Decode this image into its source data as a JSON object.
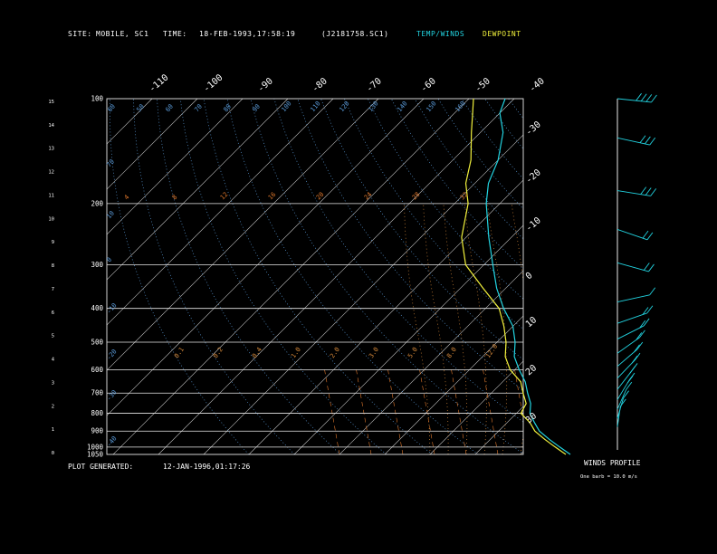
{
  "header": {
    "site_label": "SITE:",
    "site_value": "MOBILE, SC1",
    "time_label": "TIME:",
    "time_value": "18-FEB-1993,17:58:19",
    "file_id": "(J2181758.SC1)",
    "legend_temp": "TEMP/WINDS",
    "legend_dew": "DEWPOINT"
  },
  "footer": {
    "generated_label": "PLOT GENERATED:",
    "generated_value": "12-JAN-1996,01:17:26",
    "winds_title": "WINDS PROFILE",
    "winds_note": "One barb = 10.0 m/s"
  },
  "colors": {
    "temp": "#22d3e0",
    "dew": "#f0f03c",
    "isotherm": "#c8c8c8",
    "mixing": "#e0782c",
    "dry_adiabat": "#5a9ad8",
    "moist_adiabat": "#d88a3a"
  },
  "chart_data": {
    "type": "line",
    "pressure_ticks": [
      "100",
      "200",
      "300",
      "400",
      "500",
      "600",
      "700",
      "800",
      "900",
      "1000",
      "1050"
    ],
    "height_ticks": [
      "15",
      "14",
      "13",
      "12",
      "11",
      "10",
      "9",
      "8",
      "7",
      "6",
      "5",
      "4",
      "3",
      "2",
      "1",
      "0"
    ],
    "top_temp_ticks": [
      "-110",
      "-100",
      "-90",
      "-80",
      "-70",
      "-60",
      "-50",
      "-40"
    ],
    "right_temp_ticks": [
      "-30",
      "-20",
      "-10",
      "0",
      "10",
      "20",
      "30"
    ],
    "mixing_labels": [
      "4",
      "8",
      "12",
      "16",
      "20",
      "24",
      "28",
      "32"
    ],
    "dry_labels_top": [
      "60",
      "50",
      "60",
      "70",
      "80",
      "90",
      "100",
      "110",
      "120",
      "130",
      "140",
      "150",
      "160"
    ],
    "moist_labels": [
      "0.1",
      "0.2",
      "0.4",
      "1.0",
      "2.0",
      "3.0",
      "5.0",
      "8.0",
      "12.0"
    ],
    "left_dry_labels": [
      "70",
      "10",
      "0",
      "-10",
      "-20",
      "-30",
      "-40"
    ],
    "ylim_hpa": [
      1050,
      100
    ],
    "series": [
      {
        "name": "TEMP/WINDS",
        "pressure": [
          1050,
          1000,
          950,
          900,
          850,
          800,
          750,
          700,
          650,
          600,
          550,
          500,
          450,
          400,
          350,
          300,
          250,
          200,
          175,
          150,
          125,
          110,
          100
        ],
        "temp": [
          21,
          17,
          13,
          9,
          6,
          3,
          1,
          -2,
          -5,
          -9,
          -13,
          -16,
          -20,
          -26,
          -32,
          -38,
          -45,
          -53,
          -57,
          -60,
          -65,
          -70,
          -72
        ]
      },
      {
        "name": "DEWPOINT",
        "pressure": [
          1050,
          1000,
          950,
          900,
          850,
          800,
          750,
          700,
          650,
          600,
          550,
          500,
          450,
          400,
          350,
          300,
          250,
          200,
          175,
          150,
          125,
          110,
          100
        ],
        "temp": [
          20,
          16,
          12,
          8,
          5,
          1,
          0,
          -3,
          -6,
          -11,
          -15,
          -18,
          -22,
          -27,
          -35,
          -44,
          -51,
          -57,
          -62,
          -66,
          -72,
          -76,
          -79
        ]
      }
    ],
    "wind_barbs": [
      {
        "p": 100,
        "dir": 280,
        "spd": 35
      },
      {
        "p": 130,
        "dir": 290,
        "spd": 30
      },
      {
        "p": 185,
        "dir": 285,
        "spd": 25
      },
      {
        "p": 240,
        "dir": 300,
        "spd": 22
      },
      {
        "p": 300,
        "dir": 295,
        "spd": 18
      },
      {
        "p": 390,
        "dir": 250,
        "spd": 12
      },
      {
        "p": 450,
        "dir": 240,
        "spd": 15
      },
      {
        "p": 500,
        "dir": 230,
        "spd": 18
      },
      {
        "p": 550,
        "dir": 220,
        "spd": 20
      },
      {
        "p": 600,
        "dir": 215,
        "spd": 22
      },
      {
        "p": 650,
        "dir": 210,
        "spd": 20
      },
      {
        "p": 700,
        "dir": 205,
        "spd": 18
      },
      {
        "p": 750,
        "dir": 200,
        "spd": 15
      },
      {
        "p": 800,
        "dir": 195,
        "spd": 12
      },
      {
        "p": 850,
        "dir": 190,
        "spd": 10
      },
      {
        "p": 900,
        "dir": 185,
        "spd": 8
      }
    ]
  }
}
